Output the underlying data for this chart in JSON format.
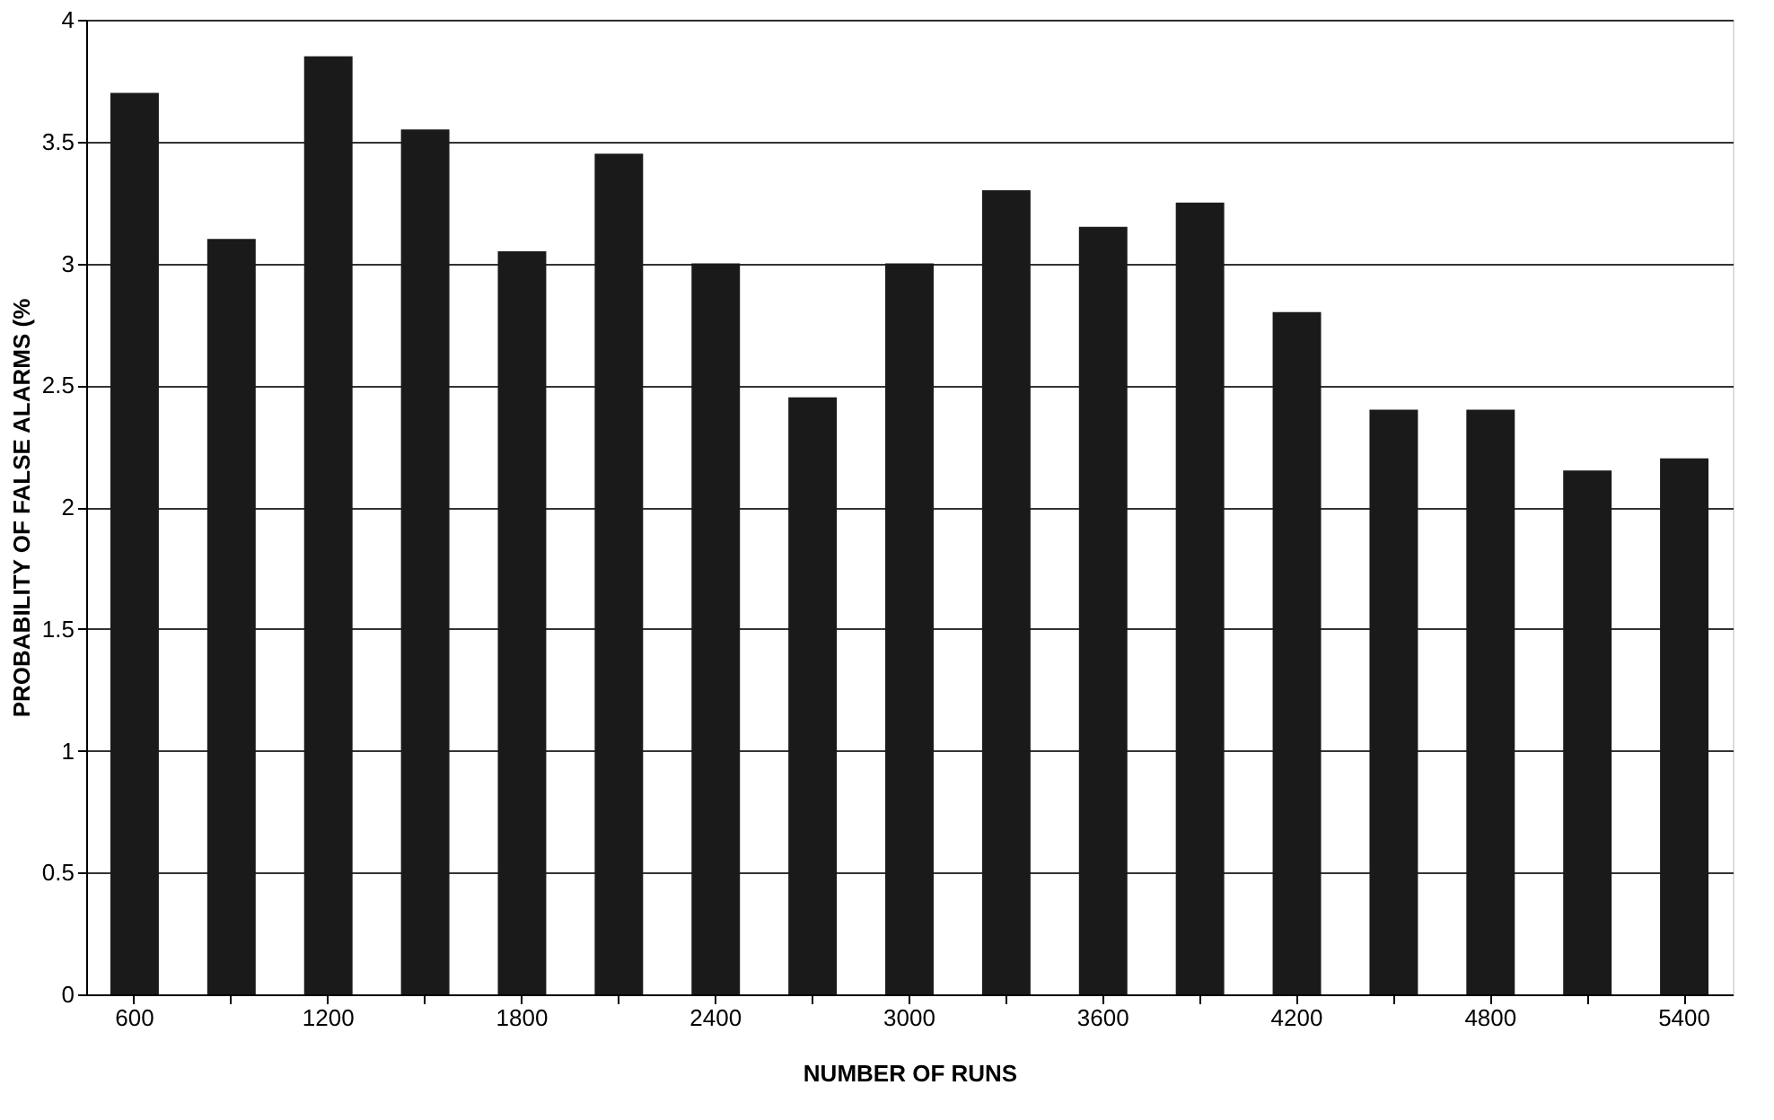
{
  "chart_data": {
    "type": "bar",
    "xlabel": "NUMBER OF RUNS",
    "ylabel": "PROBABILITY OF FALSE ALARMS (%",
    "categories": [
      "600",
      null,
      "1200",
      null,
      "1800",
      null,
      "2400",
      null,
      "3000",
      null,
      "3600",
      null,
      "4200",
      null,
      "4800",
      null,
      "5400"
    ],
    "values": [
      3.7,
      3.1,
      3.85,
      3.55,
      3.05,
      3.45,
      3.0,
      2.45,
      3.0,
      3.3,
      3.15,
      3.25,
      2.8,
      2.4,
      2.4,
      2.15,
      2.2
    ],
    "color": "#1a1a1a",
    "ylim": [
      0,
      4
    ],
    "yticks": [
      0,
      0.5,
      1,
      1.5,
      2,
      2.5,
      3,
      3.5,
      4
    ],
    "grid": "y"
  }
}
